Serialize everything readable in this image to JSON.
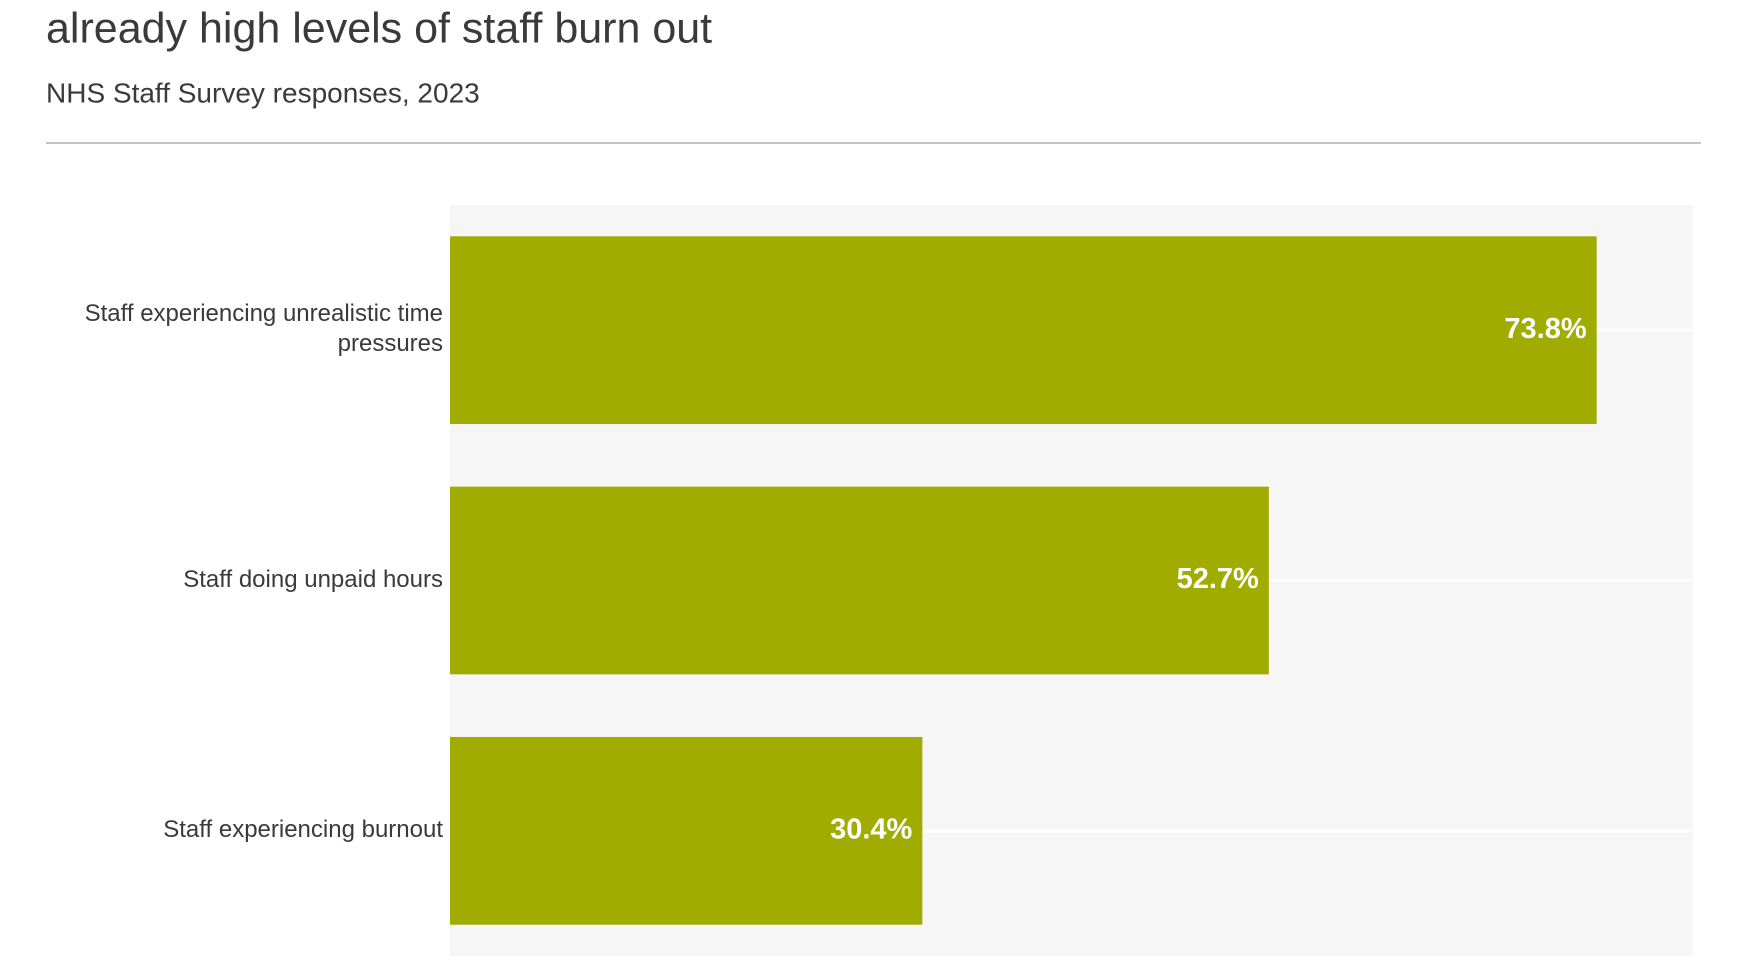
{
  "chart_data": {
    "type": "bar",
    "orientation": "horizontal",
    "title": "already high levels of staff burn out",
    "subtitle": "NHS Staff Survey responses, 2023",
    "categories": [
      "Staff experiencing unrealistic time pressures",
      "Staff doing unpaid hours",
      "Staff experiencing burnout"
    ],
    "values": [
      73.8,
      52.7,
      30.4
    ],
    "value_labels": [
      "73.8%",
      "52.7%",
      "30.4%"
    ],
    "color": "#a0ac00",
    "xlim": [
      0,
      80
    ]
  }
}
